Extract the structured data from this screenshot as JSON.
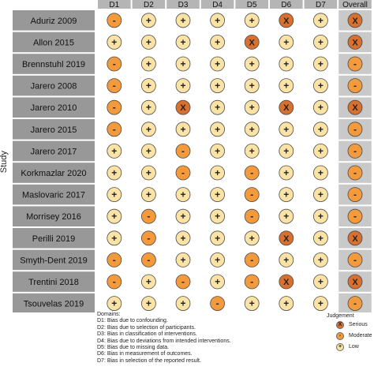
{
  "chart_data": {
    "type": "heatmap",
    "title": "",
    "ylabel": "Study",
    "domains": [
      "D1",
      "D2",
      "D3",
      "D4",
      "D5",
      "D6",
      "D7",
      "Overall"
    ],
    "studies": [
      "Aduriz 2009",
      "Allon 2015",
      "Brennstuhl 2019",
      "Jarero 2008",
      "Jarero 2010",
      "Jarero 2015",
      "Jarero 2017",
      "Korkmazlar 2020",
      "Maslovaric 2017",
      "Morrisey 2016",
      "Perilli 2019",
      "Smyth-Dent 2019",
      "Trentini 2018",
      "Tsouvelas 2019"
    ],
    "judgements": [
      [
        "Moderate",
        "Low",
        "Low",
        "Low",
        "Low",
        "Serious",
        "Low",
        "Serious"
      ],
      [
        "Low",
        "Low",
        "Low",
        "Low",
        "Serious",
        "Low",
        "Low",
        "Serious"
      ],
      [
        "Moderate",
        "Low",
        "Low",
        "Low",
        "Low",
        "Low",
        "Low",
        "Moderate"
      ],
      [
        "Moderate",
        "Low",
        "Low",
        "Low",
        "Low",
        "Low",
        "Low",
        "Moderate"
      ],
      [
        "Moderate",
        "Low",
        "Serious",
        "Low",
        "Low",
        "Serious",
        "Low",
        "Serious"
      ],
      [
        "Moderate",
        "Low",
        "Low",
        "Low",
        "Low",
        "Low",
        "Low",
        "Moderate"
      ],
      [
        "Low",
        "Low",
        "Moderate",
        "Low",
        "Low",
        "Low",
        "Low",
        "Moderate"
      ],
      [
        "Low",
        "Low",
        "Moderate",
        "Low",
        "Moderate",
        "Low",
        "Low",
        "Moderate"
      ],
      [
        "Low",
        "Low",
        "Low",
        "Low",
        "Moderate",
        "Low",
        "Low",
        "Moderate"
      ],
      [
        "Low",
        "Moderate",
        "Low",
        "Low",
        "Moderate",
        "Low",
        "Low",
        "Moderate"
      ],
      [
        "Low",
        "Moderate",
        "Low",
        "Low",
        "Low",
        "Serious",
        "Low",
        "Serious"
      ],
      [
        "Moderate",
        "Moderate",
        "Low",
        "Low",
        "Moderate",
        "Low",
        "Low",
        "Moderate"
      ],
      [
        "Moderate",
        "Low",
        "Moderate",
        "Low",
        "Moderate",
        "Serious",
        "Low",
        "Serious"
      ],
      [
        "Low",
        "Low",
        "Low",
        "Moderate",
        "Low",
        "Low",
        "Low",
        "Moderate"
      ]
    ],
    "symbols": {
      "Serious": "X",
      "Moderate": "-",
      "Low": "+"
    },
    "colors": {
      "Serious": "#d8702f",
      "Moderate": "#f29a3c",
      "Low": "#fbe3a6",
      "header_bg": "#b5b5b5",
      "row_label_bg": "#989898",
      "overall_bg": "#c9c9c9",
      "grid_bg": "#ffffff"
    },
    "legend_placement": "bottom-right"
  },
  "domains_legend": {
    "title": "Domains:",
    "lines": [
      "D1: Bias due to confounding.",
      "D2: Bias due to selection of participants.",
      "D3: Bias in classification of interventions.",
      "D4: Bias due to deviations from intended interventions.",
      "D5: Bias due to missing data.",
      "D6: Bias in measurement of outcomes.",
      "D7: Bias in selection of the reported result."
    ]
  },
  "judgement_legend": {
    "title": "Judgement",
    "items": [
      {
        "label": "Serious",
        "symbol": "X"
      },
      {
        "label": "Moderate",
        "symbol": "-"
      },
      {
        "label": "Low",
        "symbol": "+"
      }
    ]
  }
}
